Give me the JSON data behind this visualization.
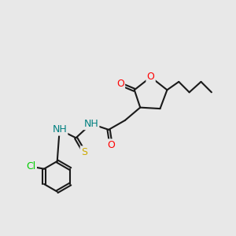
{
  "bg_color": "#e8e8e8",
  "bond_color": "#1a1a1a",
  "atom_colors": {
    "O": "#ff0000",
    "N": "#008080",
    "S": "#ccaa00",
    "Cl": "#00cc00",
    "H": "#008080",
    "C": "#1a1a1a"
  },
  "font_size": 9,
  "bond_width": 1.5
}
